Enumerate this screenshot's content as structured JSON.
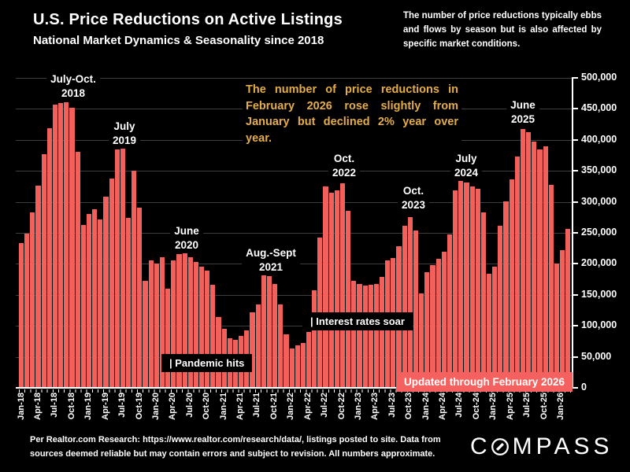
{
  "header": {
    "title": "U.S. Price Reductions on Active Listings",
    "subtitle": "National Market Dynamics & Seasonality since 2018",
    "note": "The number of price reductions typically ebbs and flows by season but is also affected by specific market conditions."
  },
  "annotation": {
    "text": "The number of price reductions in February 2026 rose slightly from January but declined 2% year over year.",
    "color": "#e5ad45"
  },
  "callouts": [
    {
      "line1": "July-Oct.",
      "line2": "2018"
    },
    {
      "line1": "July",
      "line2": "2019"
    },
    {
      "line1": "June",
      "line2": "2020"
    },
    {
      "line1": "Aug.-Sept",
      "line2": "2021"
    },
    {
      "line1": "Oct.",
      "line2": "2022"
    },
    {
      "line1": "Oct.",
      "line2": "2023"
    },
    {
      "line1": "July",
      "line2": "2024"
    },
    {
      "line1": "June",
      "line2": "2025"
    }
  ],
  "flags": {
    "pandemic": "| Pandemic hits",
    "rates": "| Interest rates soar"
  },
  "badge": "Updated through February 2026",
  "footer": {
    "source": "Per Realtor.com Research:  https://www.realtor.com/research/data/, listings posted to site. Data from sources deemed reliable but may contain errors and subject to revision. All numbers approximate.",
    "brand_prefix": "C",
    "brand_suffix": "MPASS"
  },
  "chart_data": {
    "type": "bar",
    "title": "U.S. Price Reductions on Active Listings",
    "series_name": "Monthly count of price reductions on active listings",
    "start_month": "Jan-2018",
    "end_month": "Feb-2026",
    "ylim": [
      0,
      500000
    ],
    "grid": true,
    "bar_color": "#f2605c",
    "y_ticks": [
      "500,000",
      "450,000",
      "400,000",
      "350,000",
      "300,000",
      "250,000",
      "200,000",
      "150,000",
      "100,000",
      "50,000",
      "0"
    ],
    "x_ticks": [
      "Jan-18",
      "Apr-18",
      "Jul-18",
      "Oct-18",
      "Jan-19",
      "Apr-19",
      "Jul-19",
      "Oct-19",
      "Jan-20",
      "Apr-20",
      "Jul-20",
      "Oct-20",
      "Jan-21",
      "Apr-21",
      "Jul-21",
      "Oct-21",
      "Jan-22",
      "Apr-22",
      "Jul-22",
      "Oct-22",
      "Jan-23",
      "Apr-23",
      "Jul-23",
      "Oct-23",
      "Jan-24",
      "Apr-24",
      "Jul-24",
      "Oct-24",
      "Jan-25",
      "Apr-25",
      "Jul-25",
      "Oct-25",
      "Jan-26"
    ],
    "values": [
      233000,
      249000,
      283000,
      326000,
      377000,
      419000,
      457000,
      459000,
      461000,
      452000,
      381000,
      263000,
      280000,
      288000,
      272000,
      308000,
      337000,
      385000,
      388000,
      274000,
      350000,
      290000,
      172000,
      205000,
      200000,
      211000,
      160000,
      205000,
      216000,
      218000,
      211000,
      203000,
      196000,
      189000,
      166000,
      114000,
      95000,
      80000,
      78000,
      84000,
      93000,
      122000,
      135000,
      181000,
      180000,
      168000,
      135000,
      86000,
      63000,
      68000,
      72000,
      90000,
      158000,
      243000,
      325000,
      315000,
      319000,
      330000,
      285000,
      172000,
      167000,
      165000,
      166000,
      167000,
      179000,
      205000,
      209000,
      228000,
      261000,
      275000,
      254000,
      152000,
      186000,
      198000,
      208000,
      220000,
      247000,
      318000,
      339000,
      331000,
      325000,
      321000,
      283000,
      184000,
      195000,
      261000,
      301000,
      336000,
      373000,
      417000,
      413000,
      397000,
      385000,
      390000,
      327000,
      200000,
      222000,
      256000
    ]
  }
}
